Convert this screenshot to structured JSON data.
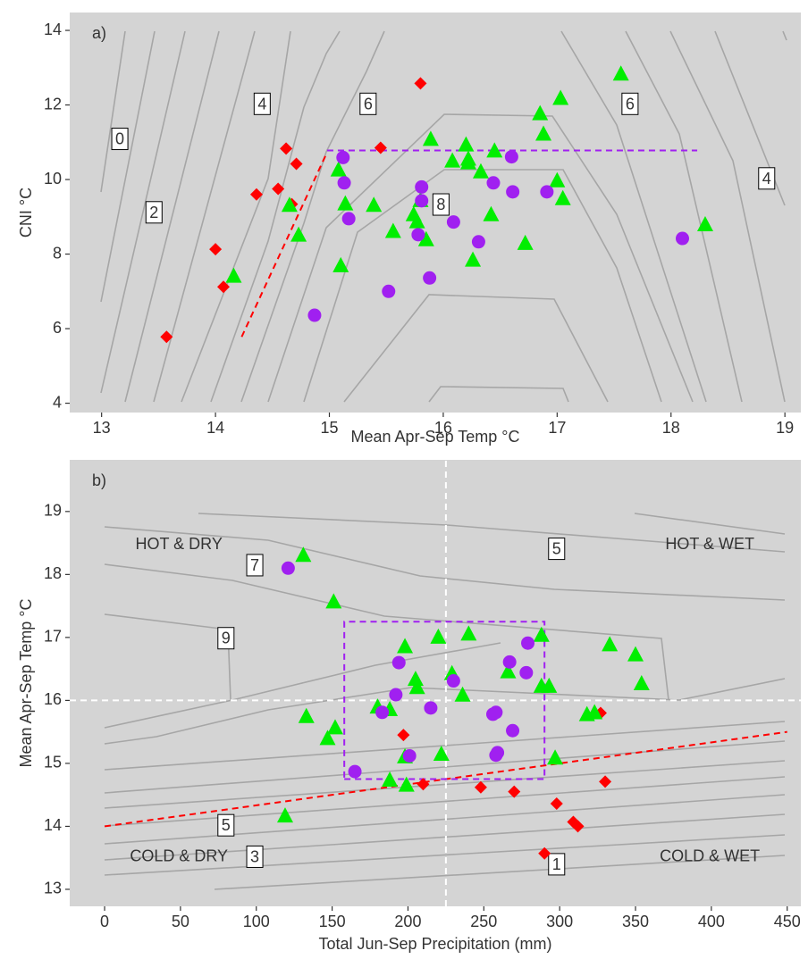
{
  "chart_data": [
    {
      "type": "scatter",
      "panel_label": "a)",
      "x_label": "Mean Apr-Sep Temp  °C",
      "y_label": "CNI  °C",
      "xlim": [
        12.72,
        19.14
      ],
      "ylim": [
        3.75,
        14.48
      ],
      "xticks": [
        13,
        14,
        15,
        16,
        17,
        18,
        19
      ],
      "yticks": [
        4,
        6,
        8,
        10,
        12,
        14
      ],
      "series": [
        {
          "color": "#ff0000",
          "marker": "diamond",
          "x": [
            13.57,
            14.0,
            14.07,
            14.36,
            14.55,
            14.62,
            14.67,
            14.71,
            15.45,
            15.8
          ],
          "y": [
            5.78,
            8.13,
            7.12,
            9.6,
            9.75,
            10.83,
            9.34,
            10.42,
            10.85,
            12.58
          ]
        },
        {
          "color": "#00ee00",
          "marker": "triangle",
          "x": [
            14.16,
            14.73,
            14.65,
            15.08,
            15.1,
            15.14,
            15.39,
            15.56,
            15.74,
            15.77,
            15.8,
            15.85,
            15.89,
            16.08,
            16.2,
            16.22,
            16.22,
            16.33,
            16.26,
            16.42,
            16.45,
            16.72,
            16.85,
            16.88,
            17.0,
            17.03,
            17.05,
            17.56,
            18.3
          ],
          "y": [
            7.4,
            8.5,
            9.3,
            10.25,
            7.68,
            9.34,
            9.3,
            8.6,
            9.05,
            8.86,
            9.43,
            8.38,
            11.07,
            10.49,
            10.92,
            10.54,
            10.44,
            10.2,
            7.83,
            9.05,
            10.76,
            8.28,
            11.76,
            11.21,
            9.96,
            12.17,
            9.48,
            12.82,
            8.78
          ]
        },
        {
          "color": "#a020f0",
          "marker": "circle",
          "x": [
            14.87,
            15.12,
            15.13,
            15.17,
            15.52,
            15.78,
            15.81,
            15.81,
            15.88,
            16.09,
            16.31,
            16.44,
            16.6,
            16.61,
            16.91,
            18.1
          ],
          "y": [
            6.36,
            10.59,
            9.91,
            8.95,
            7.0,
            8.52,
            9.43,
            9.8,
            7.36,
            8.86,
            8.33,
            9.91,
            10.61,
            9.67,
            9.67,
            8.42
          ]
        }
      ],
      "ref_lines": [
        {
          "color": "#ff0000",
          "x": [
            14.23,
            14.98
          ],
          "y": [
            5.78,
            10.73
          ]
        },
        {
          "color": "#a020f0",
          "x": [
            14.98,
            18.23
          ],
          "y": [
            10.78,
            10.78
          ]
        }
      ],
      "annotations": [
        {
          "text": "0",
          "x": 13.16,
          "y": 11.06,
          "boxed": true
        },
        {
          "text": "2",
          "x": 13.46,
          "y": 9.09,
          "boxed": true
        },
        {
          "text": "4",
          "x": 14.41,
          "y": 12.0,
          "boxed": true
        },
        {
          "text": "6",
          "x": 15.34,
          "y": 12.0,
          "boxed": true
        },
        {
          "text": "6",
          "x": 17.64,
          "y": 12.0,
          "boxed": true
        },
        {
          "text": "4",
          "x": 18.84,
          "y": 10.0,
          "boxed": true
        },
        {
          "text": "8",
          "x": 15.98,
          "y": 9.3,
          "boxed": true
        }
      ]
    },
    {
      "type": "scatter",
      "panel_label": "b)",
      "x_label": "Total Jun-Sep Precipitation (mm)",
      "y_label": "Mean Apr-Sep Temp  °C",
      "xlim": [
        -23,
        459
      ],
      "ylim": [
        12.73,
        19.82
      ],
      "xticks": [
        0,
        50,
        100,
        150,
        200,
        250,
        300,
        350,
        400,
        450
      ],
      "yticks": [
        13,
        14,
        15,
        16,
        17,
        18,
        19
      ],
      "series": [
        {
          "color": "#ff0000",
          "marker": "diamond",
          "x": [
            290,
            312,
            309,
            298,
            270,
            248,
            210,
            330,
            197,
            327
          ],
          "y": [
            13.57,
            14.0,
            14.07,
            14.36,
            14.55,
            14.62,
            14.67,
            14.71,
            15.45,
            15.8
          ]
        },
        {
          "color": "#00ee00",
          "marker": "triangle",
          "x": [
            119,
            199,
            188,
            297,
            198,
            222,
            147,
            152,
            133,
            318,
            323,
            188,
            180,
            236,
            206,
            288,
            293,
            354,
            205,
            229,
            266,
            350,
            198,
            333,
            220,
            288,
            240,
            151,
            131
          ],
          "y": [
            14.16,
            14.65,
            14.73,
            15.08,
            15.1,
            15.14,
            15.39,
            15.56,
            15.74,
            15.77,
            15.8,
            15.85,
            15.89,
            16.08,
            16.2,
            16.22,
            16.22,
            16.26,
            16.33,
            16.42,
            16.45,
            16.72,
            16.85,
            16.88,
            17.0,
            17.03,
            17.05,
            17.56,
            18.3
          ]
        },
        {
          "color": "#a020f0",
          "marker": "circle",
          "x": [
            165,
            201,
            258,
            259,
            269,
            256,
            183,
            258,
            215,
            192,
            230,
            278,
            194,
            267,
            279,
            121
          ],
          "y": [
            14.87,
            15.12,
            15.13,
            15.17,
            15.52,
            15.78,
            15.81,
            15.81,
            15.88,
            16.09,
            16.31,
            16.44,
            16.6,
            16.61,
            16.91,
            18.1
          ]
        }
      ],
      "ref_lines": [
        {
          "color": "#ffffff",
          "x": [
            225,
            225
          ],
          "y": [
            12.73,
            19.82
          ]
        },
        {
          "color": "#ffffff",
          "x": [
            -23,
            459
          ],
          "y": [
            16,
            16
          ]
        },
        {
          "color": "#ff0000",
          "x": [
            0,
            450
          ],
          "y": [
            14.0,
            15.5
          ]
        },
        {
          "color": "#a020f0",
          "x": [
            158,
            290,
            290,
            158,
            158
          ],
          "y": [
            14.75,
            14.75,
            17.25,
            17.25,
            14.75
          ]
        }
      ],
      "annotations": [
        {
          "text": "HOT & DRY",
          "x": 49,
          "y": 18.47,
          "boxed": false
        },
        {
          "text": "HOT & WET",
          "x": 399,
          "y": 18.47,
          "boxed": false
        },
        {
          "text": "COLD & DRY",
          "x": 49,
          "y": 13.51,
          "boxed": false
        },
        {
          "text": "COLD & WET",
          "x": 399,
          "y": 13.51,
          "boxed": false
        },
        {
          "text": "7",
          "x": 99,
          "y": 18.13,
          "boxed": true
        },
        {
          "text": "5",
          "x": 298,
          "y": 18.39,
          "boxed": true
        },
        {
          "text": "9",
          "x": 80,
          "y": 16.97,
          "boxed": true
        },
        {
          "text": "5",
          "x": 80,
          "y": 14.0,
          "boxed": true
        },
        {
          "text": "3",
          "x": 99,
          "y": 13.5,
          "boxed": true
        },
        {
          "text": "1",
          "x": 298,
          "y": 13.38,
          "boxed": true
        }
      ]
    }
  ]
}
